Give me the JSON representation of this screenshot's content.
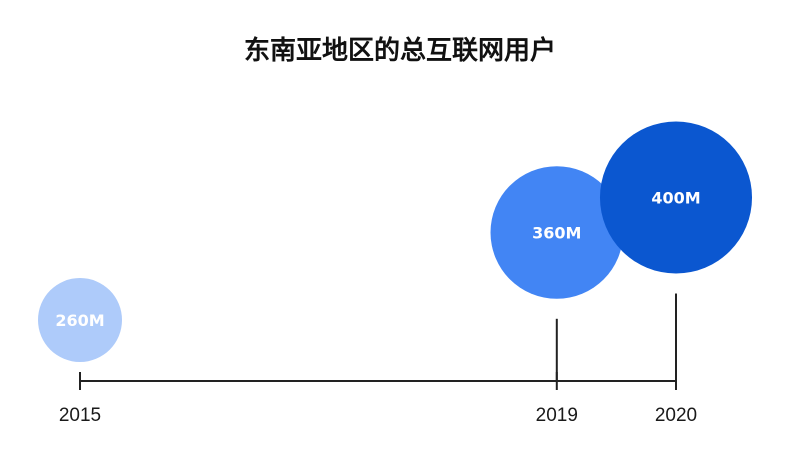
{
  "chart_data": {
    "type": "bubble-timeline",
    "title": "东南亚地区的总互联网用户",
    "x_domain": [
      2015,
      2020
    ],
    "unit": "M",
    "points": [
      {
        "x": 2015,
        "value": 260,
        "label": "260M",
        "color": "#aecbfa"
      },
      {
        "x": 2019,
        "value": 360,
        "label": "360M",
        "color": "#4285f4"
      },
      {
        "x": 2020,
        "value": 400,
        "label": "400M",
        "color": "#0b57d0"
      }
    ],
    "ticks": [
      "2015",
      "2019",
      "2020"
    ]
  }
}
